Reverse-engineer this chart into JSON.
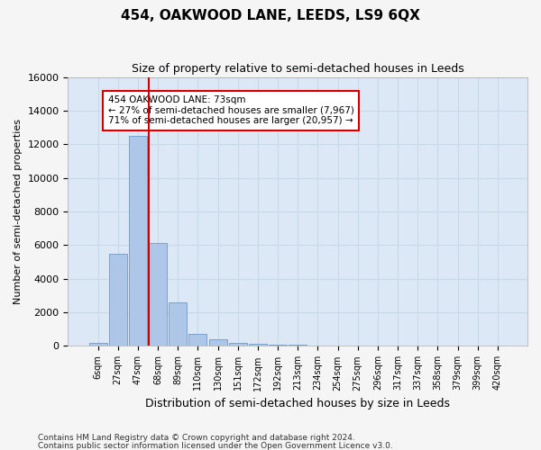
{
  "title": "454, OAKWOOD LANE, LEEDS, LS9 6QX",
  "subtitle": "Size of property relative to semi-detached houses in Leeds",
  "xlabel": "Distribution of semi-detached houses by size in Leeds",
  "ylabel": "Number of semi-detached properties",
  "footer_line1": "Contains HM Land Registry data © Crown copyright and database right 2024.",
  "footer_line2": "Contains public sector information licensed under the Open Government Licence v3.0.",
  "bin_labels": [
    "6sqm",
    "27sqm",
    "47sqm",
    "68sqm",
    "89sqm",
    "110sqm",
    "130sqm",
    "151sqm",
    "172sqm",
    "192sqm",
    "213sqm",
    "234sqm",
    "254sqm",
    "275sqm",
    "296sqm",
    "317sqm",
    "337sqm",
    "358sqm",
    "379sqm",
    "399sqm",
    "420sqm"
  ],
  "bar_values": [
    200,
    5500,
    12500,
    6100,
    2600,
    700,
    400,
    200,
    150,
    100,
    80,
    0,
    0,
    0,
    0,
    0,
    0,
    0,
    0,
    0,
    0
  ],
  "bar_color": "#aec6e8",
  "bar_edge_color": "#5a8fc0",
  "vline_color": "#cc0000",
  "vline_pos": 2.55,
  "annotation_text": "454 OAKWOOD LANE: 73sqm\n← 27% of semi-detached houses are smaller (7,967)\n71% of semi-detached houses are larger (20,957) →",
  "annotation_box_color": "#ffffff",
  "annotation_box_edge": "#cc0000",
  "ylim": [
    0,
    16000
  ],
  "yticks": [
    0,
    2000,
    4000,
    6000,
    8000,
    10000,
    12000,
    14000,
    16000
  ],
  "grid_color": "#c8d8e8",
  "bg_color": "#dce8f5",
  "fig_bg_color": "#f5f5f5"
}
